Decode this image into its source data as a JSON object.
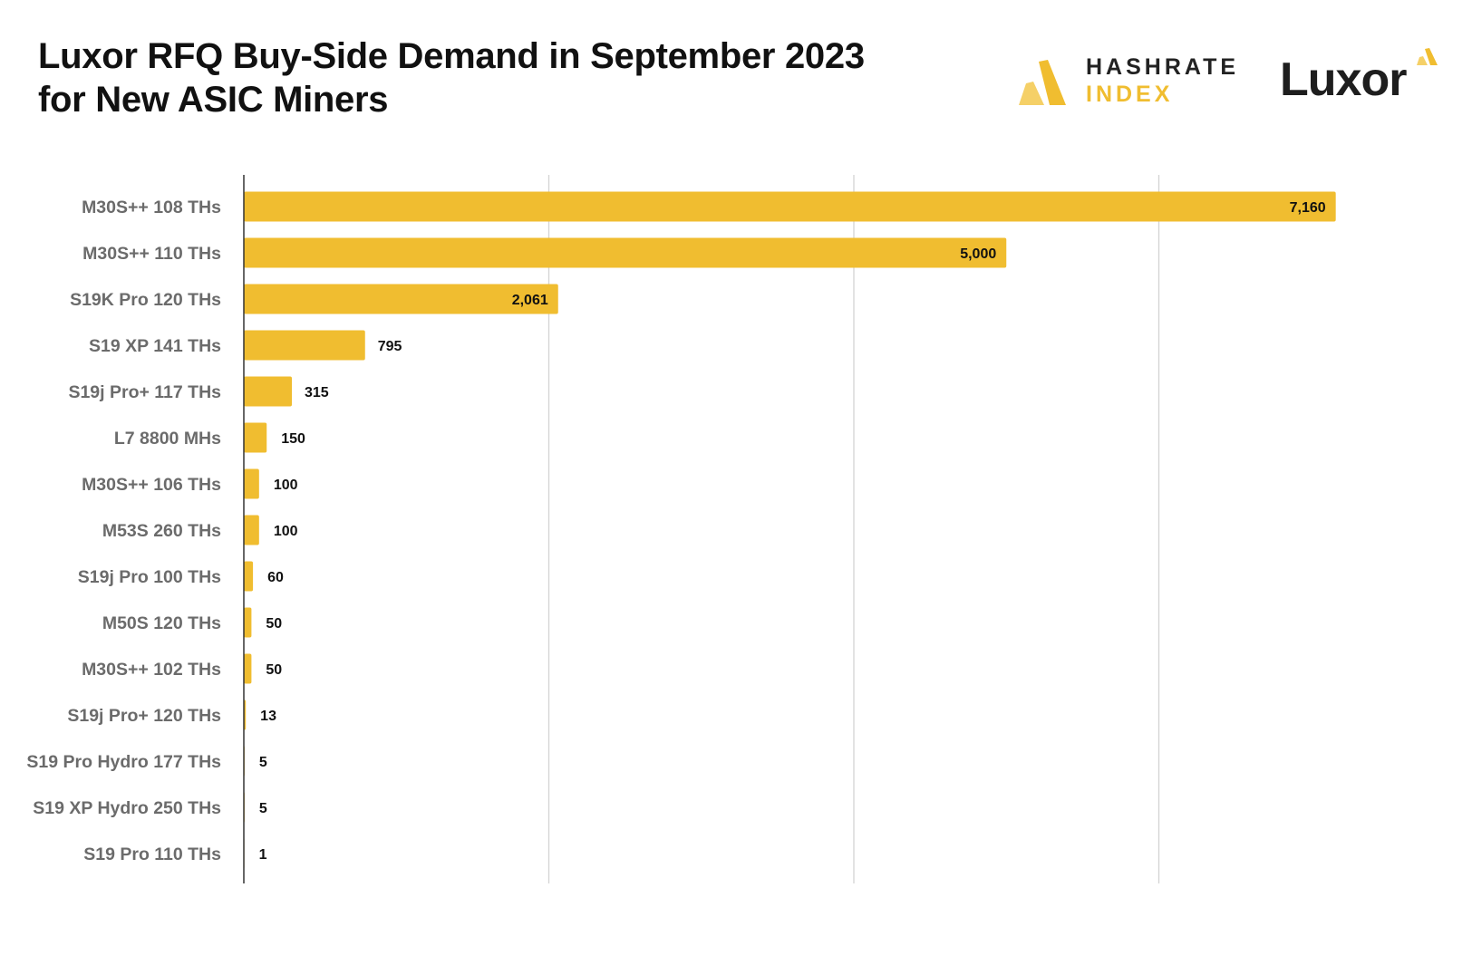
{
  "header": {
    "title": "Luxor RFQ Buy-Side Demand in September 2023 for New ASIC Miners"
  },
  "logos": {
    "hashrate_index": {
      "line1": "HASHRATE",
      "line2": "INDEX",
      "icon": "hashrate-index-logo-icon"
    },
    "luxor": {
      "wordmark": "Luxor",
      "icon": "luxor-logo-icon"
    }
  },
  "colors": {
    "bar": "#F0BD30",
    "grid": "#D4D4D4",
    "axis": "#333333",
    "category_text": "#6B6B6B",
    "value_text": "#111111"
  },
  "chart_data": {
    "type": "bar",
    "orientation": "horizontal",
    "title": "Luxor RFQ Buy-Side Demand in September 2023 for New ASIC Miners",
    "categories": [
      "M30S++ 108 THs",
      "M30S++ 110 THs",
      "S19K Pro 120 THs",
      "S19 XP 141 THs",
      "S19j Pro+ 117 THs",
      "L7 8800 MHs",
      "M30S++ 106 THs",
      "M53S 260 THs",
      "S19j Pro 100 THs",
      "M50S 120 THs",
      "M30S++ 102 THs",
      "S19j Pro+ 120 THs",
      "S19 Pro Hydro 177 THs",
      "S19 XP Hydro 250 THs",
      "S19 Pro 110 THs"
    ],
    "values": [
      7160,
      5000,
      2061,
      795,
      315,
      150,
      100,
      100,
      60,
      50,
      50,
      13,
      5,
      5,
      1
    ],
    "value_labels": [
      "7,160",
      "5,000",
      "2,061",
      "795",
      "315",
      "150",
      "100",
      "100",
      "60",
      "50",
      "50",
      "13",
      "5",
      "5",
      "1"
    ],
    "xlim": [
      0,
      8000
    ],
    "grid": true,
    "grid_axis": "x",
    "x_tick_labels_shown": false,
    "legend": "none",
    "xlabel": "",
    "ylabel": ""
  }
}
